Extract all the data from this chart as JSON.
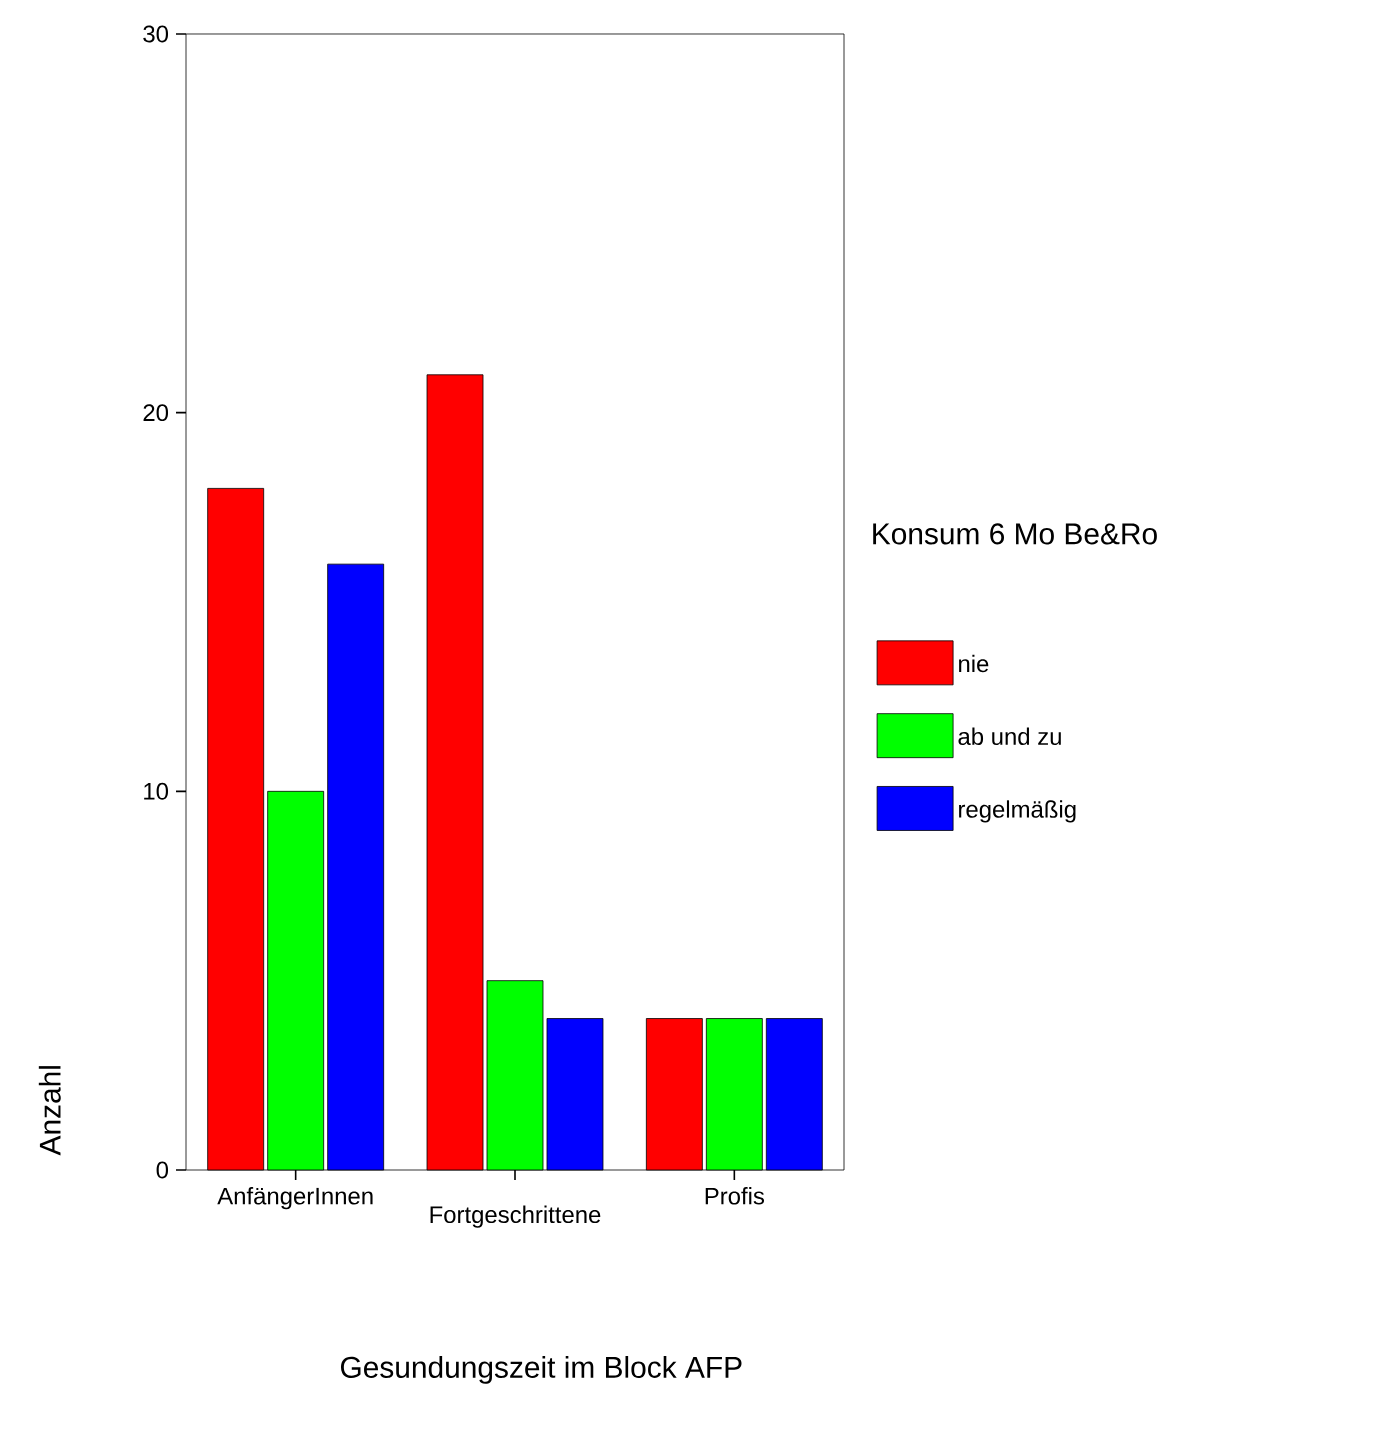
{
  "chart_data": {
    "type": "bar",
    "xlabel": "Gesundungszeit im Block AFP",
    "ylabel": "Anzahl",
    "legend_title": "Konsum 6 Mo Be&Ro",
    "categories": [
      "AnfängerInnen",
      "Fortgeschrittene",
      "Profis"
    ],
    "series": [
      {
        "name": "nie",
        "color": "#ff0000",
        "values": [
          18,
          21,
          4
        ]
      },
      {
        "name": "ab und zu",
        "color": "#00ff00",
        "values": [
          10,
          5,
          4
        ]
      },
      {
        "name": "regelmäßig",
        "color": "#0000ff",
        "values": [
          16,
          4,
          4
        ]
      }
    ],
    "ylim": [
      0,
      30
    ],
    "yticks": [
      0,
      10,
      20,
      30
    ],
    "grid": false,
    "legend": "right"
  }
}
